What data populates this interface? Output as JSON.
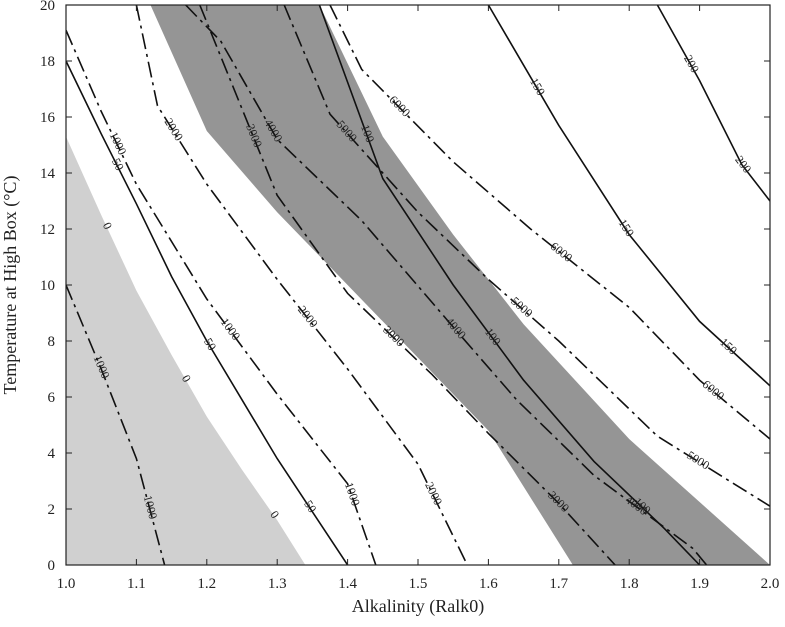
{
  "chart_data": {
    "type": "contour",
    "xlabel": "Alkalinity (Ralk0)",
    "ylabel": "Temperature at High Box (°C)",
    "xlim": [
      1.0,
      2.0
    ],
    "ylim": [
      0,
      20
    ],
    "xticks": [
      {
        "value": 1.0,
        "label": "1.0"
      },
      {
        "value": 1.1,
        "label": "1.1"
      },
      {
        "value": 1.2,
        "label": "1.2"
      },
      {
        "value": 1.3,
        "label": "1.3"
      },
      {
        "value": 1.4,
        "label": "1.4"
      },
      {
        "value": 1.5,
        "label": "1.5"
      },
      {
        "value": 1.6,
        "label": "1.6"
      },
      {
        "value": 1.7,
        "label": "1.7"
      },
      {
        "value": 1.8,
        "label": "1.8"
      },
      {
        "value": 1.9,
        "label": "1.9"
      },
      {
        "value": 2.0,
        "label": "2.0"
      }
    ],
    "yticks": [
      0,
      2,
      4,
      6,
      8,
      10,
      12,
      14,
      16,
      18,
      20
    ],
    "regions": [
      {
        "color": "#d0d0d0",
        "x": [
          1.0,
          1.0,
          1.05,
          1.1,
          1.15,
          1.2,
          1.25,
          1.3,
          1.34
        ],
        "y": [
          0,
          15.3,
          12.5,
          9.8,
          7.5,
          5.3,
          3.4,
          1.6,
          0
        ]
      },
      {
        "color": "#959595",
        "x": [
          1.12,
          1.2,
          1.3,
          1.4,
          1.5,
          1.6,
          1.72,
          2.0,
          1.8,
          1.65,
          1.55,
          1.45,
          1.36
        ],
        "y": [
          20,
          15.5,
          12.6,
          10,
          7.4,
          4.8,
          0,
          0,
          4.5,
          8.6,
          11.8,
          15.3,
          20
        ]
      }
    ],
    "contours": [
      {
        "level": 0,
        "style": "none",
        "x": [
          1.0,
          1.05,
          1.1,
          1.15,
          1.2,
          1.25,
          1.3,
          1.34
        ],
        "y": [
          15.3,
          12.5,
          9.8,
          7.5,
          5.3,
          3.4,
          1.6,
          0
        ]
      },
      {
        "level": 50,
        "style": "solid",
        "x": [
          1.0,
          1.05,
          1.1,
          1.15,
          1.2,
          1.25,
          1.3,
          1.35,
          1.4
        ],
        "y": [
          18,
          15.4,
          12.9,
          10.3,
          8.0,
          5.9,
          3.8,
          1.9,
          0
        ]
      },
      {
        "level": 100,
        "style": "solid",
        "x": [
          1.36,
          1.45,
          1.55,
          1.65,
          1.75,
          1.85,
          1.9
        ],
        "y": [
          20,
          13.8,
          10,
          6.6,
          3.7,
          1.3,
          0
        ]
      },
      {
        "level": 150,
        "style": "solid",
        "x": [
          1.6,
          1.7,
          1.8,
          1.9,
          2.0
        ],
        "y": [
          20,
          15.7,
          11.8,
          8.7,
          6.4
        ]
      },
      {
        "level": 200,
        "style": "solid",
        "x": [
          1.84,
          1.9,
          1.96,
          2.0
        ],
        "y": [
          20,
          17.3,
          14.3,
          13.0
        ]
      },
      {
        "level": 1000,
        "style": "dashdot",
        "x": [
          1.0,
          1.05,
          1.1,
          1.2,
          1.3,
          1.4,
          1.44
        ],
        "y": [
          19.1,
          16.2,
          13.6,
          9.5,
          6.1,
          2.9,
          0
        ]
      },
      {
        "level": 1000,
        "style": "dashdot",
        "x": [
          1.0,
          1.05,
          1.1,
          1.14
        ],
        "y": [
          10,
          7.0,
          3.8,
          0
        ]
      },
      {
        "level": 2000,
        "style": "dashdot",
        "x": [
          1.1,
          1.13,
          1.2,
          1.3,
          1.4,
          1.5,
          1.57
        ],
        "y": [
          20,
          16.4,
          13.6,
          10.2,
          7.0,
          3.6,
          0
        ]
      },
      {
        "level": 3000,
        "style": "dashdot",
        "x": [
          1.19,
          1.3,
          1.4,
          1.52,
          1.6,
          1.7,
          1.78
        ],
        "y": [
          20,
          13.2,
          9.7,
          6.8,
          4.7,
          2.2,
          0
        ]
      },
      {
        "level": 4000,
        "style": "dashdot",
        "x": [
          1.17,
          1.22,
          1.3,
          1.42,
          1.55,
          1.64,
          1.75,
          1.89,
          1.91
        ],
        "y": [
          20,
          18.7,
          15.2,
          12.3,
          8.5,
          5.9,
          3.2,
          0.6,
          0
        ]
      },
      {
        "level": 5000,
        "style": "dashdot",
        "x": [
          1.31,
          1.375,
          1.5,
          1.6,
          1.7,
          1.84,
          2.0
        ],
        "y": [
          20,
          16.1,
          12.6,
          10.2,
          8.0,
          4.6,
          2.1
        ]
      },
      {
        "level": 6000,
        "style": "dashdot",
        "x": [
          1.375,
          1.42,
          1.55,
          1.66,
          1.8,
          1.9,
          2.0
        ],
        "y": [
          20,
          17.7,
          14.4,
          12.0,
          9.2,
          6.6,
          4.5
        ]
      }
    ]
  }
}
